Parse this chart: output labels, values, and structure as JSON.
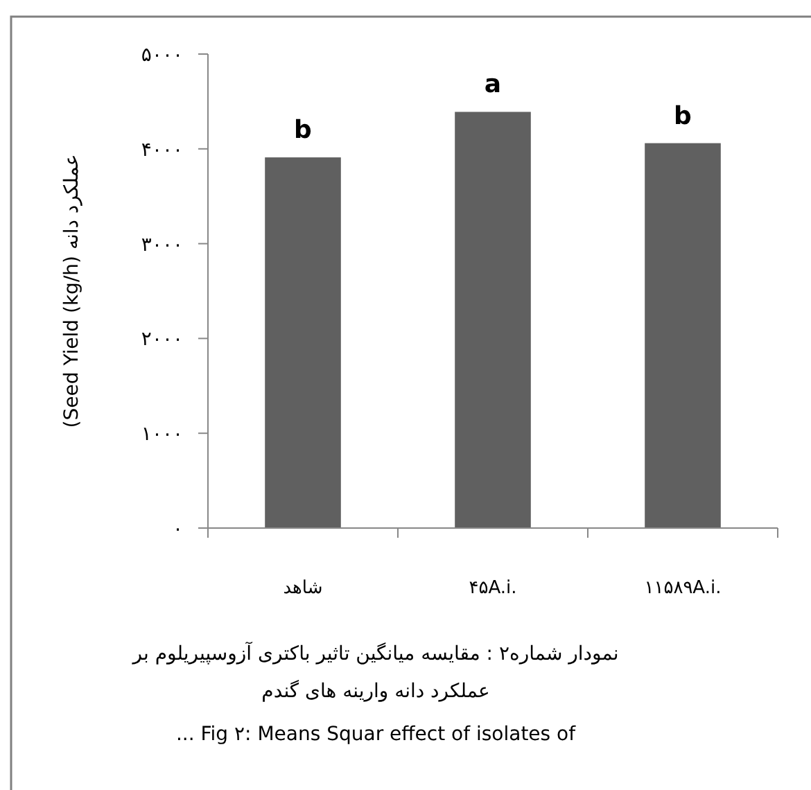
{
  "chart_data": {
    "type": "bar",
    "ylabel": "(Seed Yield (kg/h) عملکرد دانه",
    "categories": [
      "شاهد",
      "۴۵A.i.",
      "۱۱۵۸۹A.i."
    ],
    "values": [
      3910,
      4390,
      4060
    ],
    "color": "#606060",
    "ylim": [
      0,
      5000
    ],
    "yticks": [
      {
        "value": 0,
        "label": "۰"
      },
      {
        "value": 1000,
        "label": "۱۰۰۰"
      },
      {
        "value": 2000,
        "label": "۲۰۰۰"
      },
      {
        "value": 3000,
        "label": "۳۰۰۰"
      },
      {
        "value": 4000,
        "label": "۴۰۰۰"
      },
      {
        "value": 5000,
        "label": "۵۰۰۰"
      }
    ],
    "grid": false,
    "annotations": [
      {
        "text": "b",
        "x": "شاهد",
        "y": 3910
      },
      {
        "text": "a",
        "x": "۴۵A.i.",
        "y": 4390
      },
      {
        "text": "b",
        "x": "۱۱۵۸۹A.i.",
        "y": 4060
      },
      "نمودار شماره۲ : مقایسه میانگین تاثیر باکتری آزوسپیریلوم بر",
      "عملکرد دانه وارینه های گندم",
      "... Fig ۲: Means Squar effect of isolates of"
    ]
  }
}
